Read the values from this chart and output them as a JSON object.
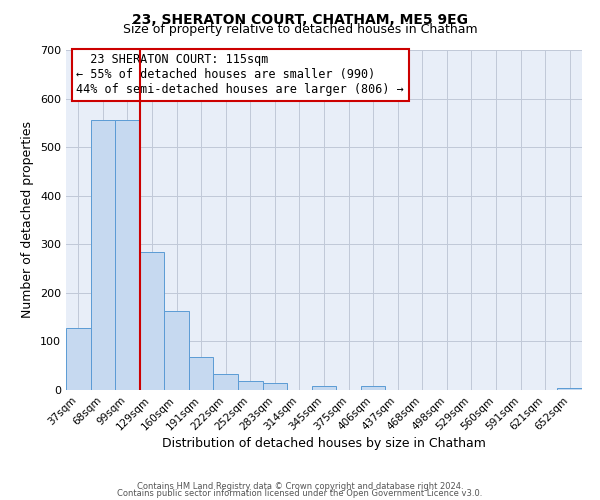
{
  "title": "23, SHERATON COURT, CHATHAM, ME5 9EG",
  "subtitle": "Size of property relative to detached houses in Chatham",
  "xlabel": "Distribution of detached houses by size in Chatham",
  "ylabel": "Number of detached properties",
  "bin_labels": [
    "37sqm",
    "68sqm",
    "99sqm",
    "129sqm",
    "160sqm",
    "191sqm",
    "222sqm",
    "252sqm",
    "283sqm",
    "314sqm",
    "345sqm",
    "375sqm",
    "406sqm",
    "437sqm",
    "468sqm",
    "498sqm",
    "529sqm",
    "560sqm",
    "591sqm",
    "621sqm",
    "652sqm"
  ],
  "bar_heights": [
    128,
    555,
    555,
    285,
    163,
    68,
    33,
    19,
    14,
    0,
    9,
    0,
    8,
    0,
    0,
    0,
    0,
    0,
    0,
    0,
    5
  ],
  "bar_color": "#c6d9f0",
  "bar_edge_color": "#5b9bd5",
  "vline_color": "#cc0000",
  "ylim": [
    0,
    700
  ],
  "yticks": [
    0,
    100,
    200,
    300,
    400,
    500,
    600,
    700
  ],
  "annotation_title": "23 SHERATON COURT: 115sqm",
  "annotation_line1": "← 55% of detached houses are smaller (990)",
  "annotation_line2": "44% of semi-detached houses are larger (806) →",
  "annotation_box_color": "#ffffff",
  "annotation_box_edge": "#cc0000",
  "footer1": "Contains HM Land Registry data © Crown copyright and database right 2024.",
  "footer2": "Contains public sector information licensed under the Open Government Licence v3.0.",
  "background_color": "#ffffff",
  "plot_bg_color": "#e8eef8",
  "grid_color": "#c0c8d8"
}
